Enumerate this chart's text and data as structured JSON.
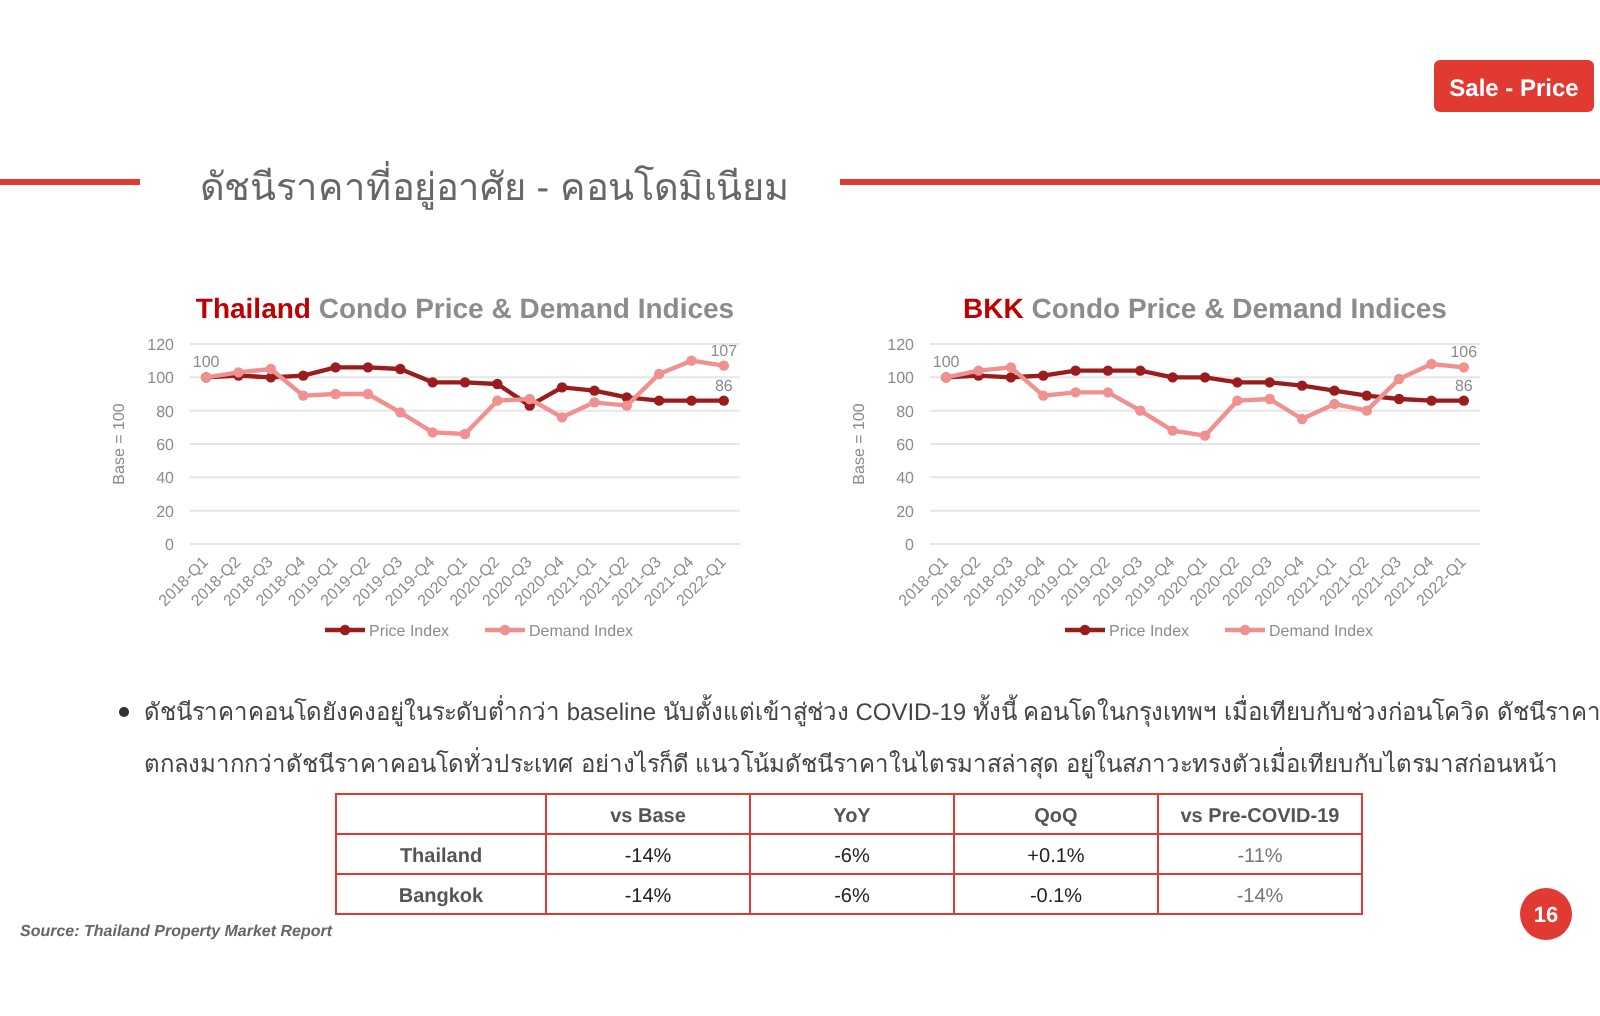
{
  "chart_data": [
    {
      "type": "line",
      "title": "Thailand Condo Price & Demand Indices",
      "ylabel": "Base = 100",
      "categories": [
        "2018-Q1",
        "2018-Q2",
        "2018-Q3",
        "2018-Q4",
        "2019-Q1",
        "2019-Q2",
        "2019-Q3",
        "2019-Q4",
        "2020-Q1",
        "2020-Q2",
        "2020-Q3",
        "2020-Q4",
        "2021-Q1",
        "2021-Q2",
        "2021-Q3",
        "2021-Q4",
        "2022-Q1"
      ],
      "series": [
        {
          "name": "Price Index",
          "color": "#9b1c1c",
          "values": [
            100,
            101,
            100,
            101,
            106,
            106,
            105,
            97,
            97,
            96,
            83,
            94,
            92,
            88,
            86,
            86,
            86
          ]
        },
        {
          "name": "Demand Index",
          "color": "#f0908f",
          "values": [
            100,
            103,
            105,
            89,
            90,
            90,
            79,
            67,
            66,
            86,
            87,
            76,
            85,
            83,
            102,
            110,
            107
          ]
        }
      ],
      "ylim": [
        0,
        120
      ],
      "yticks": [
        0,
        20,
        40,
        60,
        80,
        100,
        120
      ],
      "grid": "y",
      "legend": "bottom",
      "marker": "circle",
      "annotations": [
        {
          "text": "100",
          "x": "2018-Q1",
          "y": 100
        },
        {
          "text": "107",
          "x": "2022-Q1",
          "y": 107
        },
        {
          "text": "86",
          "x": "2022-Q1",
          "y": 86
        }
      ]
    },
    {
      "type": "line",
      "title": "BKK Condo Price & Demand Indices",
      "ylabel": "Base = 100",
      "categories": [
        "2018-Q1",
        "2018-Q2",
        "2018-Q3",
        "2018-Q4",
        "2019-Q1",
        "2019-Q2",
        "2019-Q3",
        "2019-Q4",
        "2020-Q1",
        "2020-Q2",
        "2020-Q3",
        "2020-Q4",
        "2021-Q1",
        "2021-Q2",
        "2021-Q3",
        "2021-Q4",
        "2022-Q1"
      ],
      "series": [
        {
          "name": "Price Index",
          "color": "#9b1c1c",
          "values": [
            100,
            101,
            100,
            101,
            104,
            104,
            104,
            100,
            100,
            97,
            97,
            95,
            92,
            89,
            87,
            86,
            86
          ]
        },
        {
          "name": "Demand Index",
          "color": "#f0908f",
          "values": [
            100,
            104,
            106,
            89,
            91,
            91,
            80,
            68,
            65,
            86,
            87,
            75,
            84,
            80,
            99,
            108,
            106
          ]
        }
      ],
      "ylim": [
        0,
        120
      ],
      "yticks": [
        0,
        20,
        40,
        60,
        80,
        100,
        120
      ],
      "grid": "y",
      "legend": "bottom",
      "marker": "circle",
      "annotations": [
        {
          "text": "100",
          "x": "2018-Q1",
          "y": 100
        },
        {
          "text": "106",
          "x": "2022-Q1",
          "y": 106
        },
        {
          "text": "86",
          "x": "2022-Q1",
          "y": 86
        }
      ]
    },
    {
      "type": "other",
      "title": "ดัชนีราคาที่อยู่อาศัย - คอนโดมิเนียม",
      "annotations": [
        "Sale - Price",
        "ดัชนีราคาคอนโดยังคงอยู่ในระดับต่ำกว่า baseline นับตั้งแต่เข้าสู่ช่วง COVID-19 ทั้งนี้ คอนโดในกรุงเทพฯ เมื่อเทียบกับช่วงก่อนโควิด ดัชนีราคา",
        "ตกลงมากกว่าดัชนีราคาคอนโดทั่วประเทศ อย่างไรก็ดี แนวโน้มดัชนีราคาในไตรมาสล่าสุด อยู่ในสภาวะทรงตัวเมื่อเทียบกับไตรมาสก่อนหน้า",
        "Source: Thailand Property Market Report",
        "16"
      ],
      "categories": [
        "vs Base",
        "YoY",
        "QoQ",
        "vs Pre-COVID-19"
      ],
      "y_categories": [
        "Thailand",
        "Bangkok"
      ],
      "cell_labels": [
        [
          "-14%",
          "-6%",
          "+0.1%",
          "-11%"
        ],
        [
          "-14%",
          "-6%",
          "-0.1%",
          "-14%"
        ]
      ]
    }
  ]
}
